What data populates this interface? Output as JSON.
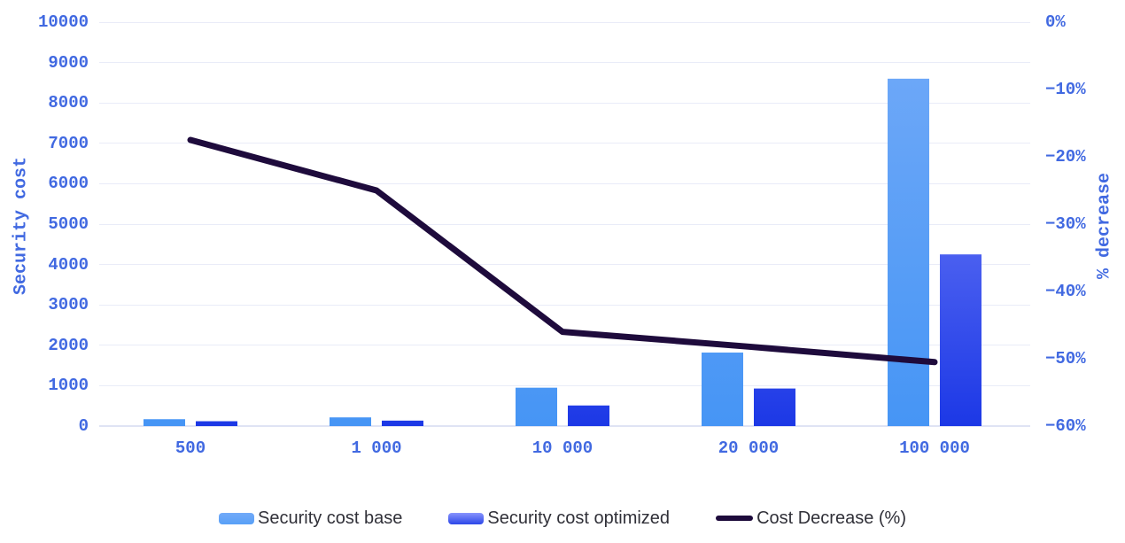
{
  "chart_data": {
    "type": "bar",
    "subtype": "grouped-bar-with-line-combo",
    "title": "",
    "categories": [
      "500",
      "1 000",
      "10 000",
      "20 000",
      "100 000"
    ],
    "series": [
      {
        "name": "Security cost base",
        "type": "bar",
        "axis": "left",
        "values": [
          170,
          215,
          950,
          1820,
          8600
        ],
        "gradient_top": "#72aaf8",
        "gradient_bottom": "#4695f5",
        "legend_color": "#58a0f7"
      },
      {
        "name": "Security cost optimized",
        "type": "bar",
        "axis": "left",
        "values": [
          120,
          135,
          510,
          930,
          4250
        ],
        "gradient_top": "#8894fd",
        "gradient_bottom": "#1c38e6",
        "legend_color": "#2b46e8"
      },
      {
        "name": "Cost Decrease (%)",
        "type": "line",
        "axis": "right",
        "values": [
          -17.5,
          -25,
          -46,
          -48.2,
          -50.5
        ],
        "color": "#1e0b3c"
      }
    ],
    "left_axis": {
      "label": "Security cost",
      "min": 0,
      "max": 10000,
      "tick_values": [
        0,
        1000,
        2000,
        3000,
        4000,
        5000,
        6000,
        7000,
        8000,
        9000,
        10000
      ],
      "tick_labels": [
        "0",
        "1000",
        "2000",
        "3000",
        "4000",
        "5000",
        "6000",
        "7000",
        "8000",
        "9000",
        "10000"
      ]
    },
    "right_axis": {
      "label": "% decrease",
      "min": -60,
      "max": 0,
      "tick_values": [
        0,
        -10,
        -20,
        -30,
        -40,
        -50,
        -60
      ],
      "tick_labels": [
        "0%",
        "−10%",
        "−20%",
        "−30%",
        "−40%",
        "−50%",
        "−60%"
      ]
    },
    "grid": true,
    "legend_position": "bottom",
    "colors": {
      "axis_text": "#4169e1",
      "grid": "#e9ecf8",
      "baseline": "#dfe3f4",
      "legend_text": "#303038",
      "background": "#ffffff"
    }
  }
}
